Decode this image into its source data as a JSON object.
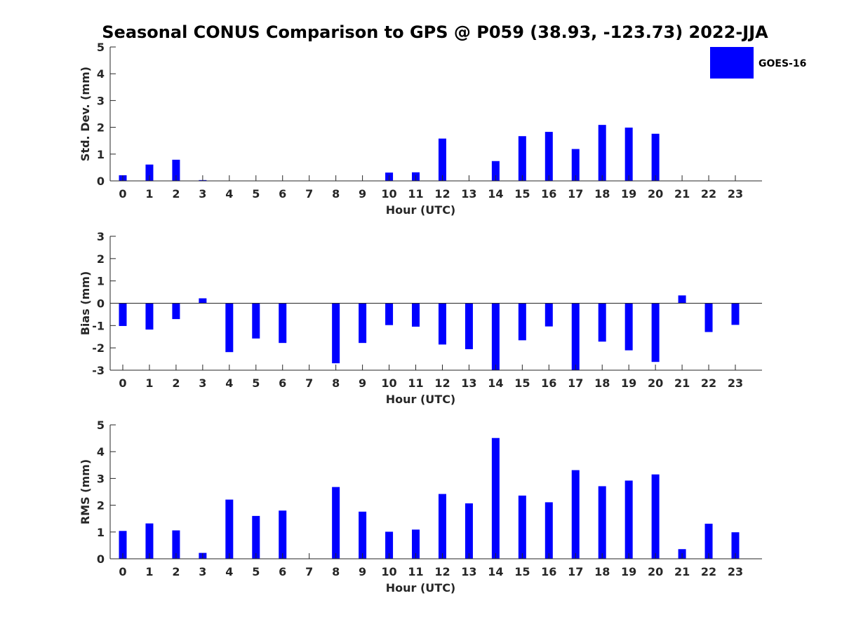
{
  "title": "Seasonal CONUS Comparison to GPS @ P059 (38.93, -123.73) 2022-JJA",
  "legend": {
    "label": "GOES-16",
    "color": "#0000ff",
    "placement": "top-right"
  },
  "colors": {
    "bar": "#0000ff",
    "axis": "#262626",
    "background": "#ffffff"
  },
  "chart_data": [
    {
      "type": "bar",
      "panel": "stddev",
      "categories": [
        "0",
        "1",
        "2",
        "3",
        "4",
        "5",
        "6",
        "7",
        "8",
        "9",
        "10",
        "11",
        "12",
        "13",
        "14",
        "15",
        "16",
        "17",
        "18",
        "19",
        "20",
        "21",
        "22",
        "23"
      ],
      "series": [
        {
          "name": "GOES-16",
          "values": [
            0.21,
            0.61,
            0.79,
            0.03,
            0,
            0,
            0,
            0,
            0,
            0,
            0.31,
            0.32,
            1.58,
            0,
            0.74,
            1.67,
            1.83,
            1.19,
            2.09,
            1.99,
            1.76,
            0,
            0,
            0
          ]
        }
      ],
      "xlabel": "Hour (UTC)",
      "ylabel": "Std. Dev. (mm)",
      "ylim": [
        0,
        5
      ],
      "yticks": [
        "0",
        "1",
        "2",
        "3",
        "4",
        "5"
      ],
      "grid": false
    },
    {
      "type": "bar",
      "panel": "bias",
      "categories": [
        "0",
        "1",
        "2",
        "3",
        "4",
        "5",
        "6",
        "7",
        "8",
        "9",
        "10",
        "11",
        "12",
        "13",
        "14",
        "15",
        "16",
        "17",
        "18",
        "19",
        "20",
        "21",
        "22",
        "23"
      ],
      "series": [
        {
          "name": "GOES-16",
          "values": [
            -1.02,
            -1.18,
            -0.71,
            0.22,
            -2.19,
            -1.58,
            -1.78,
            0,
            -2.69,
            -1.78,
            -0.98,
            -1.05,
            -1.85,
            -2.06,
            -3.0,
            -1.66,
            -1.04,
            -3.0,
            -1.72,
            -2.11,
            -2.63,
            0.35,
            -1.29,
            -0.97
          ]
        }
      ],
      "xlabel": "Hour (UTC)",
      "ylabel": "Bias (mm)",
      "ylim": [
        -3,
        3
      ],
      "yticks": [
        "-3",
        "-2",
        "-1",
        "0",
        "1",
        "2",
        "3"
      ],
      "grid": false
    },
    {
      "type": "bar",
      "panel": "rms",
      "categories": [
        "0",
        "1",
        "2",
        "3",
        "4",
        "5",
        "6",
        "7",
        "8",
        "9",
        "10",
        "11",
        "12",
        "13",
        "14",
        "15",
        "16",
        "17",
        "18",
        "19",
        "20",
        "21",
        "22",
        "23"
      ],
      "series": [
        {
          "name": "GOES-16",
          "values": [
            1.04,
            1.32,
            1.06,
            0.22,
            2.21,
            1.6,
            1.8,
            0,
            2.68,
            1.76,
            1.01,
            1.09,
            2.42,
            2.07,
            4.51,
            2.36,
            2.11,
            3.31,
            2.71,
            2.92,
            3.15,
            0.36,
            1.31,
            0.99
          ]
        }
      ],
      "xlabel": "Hour (UTC)",
      "ylabel": "RMS (mm)",
      "ylim": [
        0,
        5
      ],
      "yticks": [
        "0",
        "1",
        "2",
        "3",
        "4",
        "5"
      ],
      "grid": false
    }
  ]
}
